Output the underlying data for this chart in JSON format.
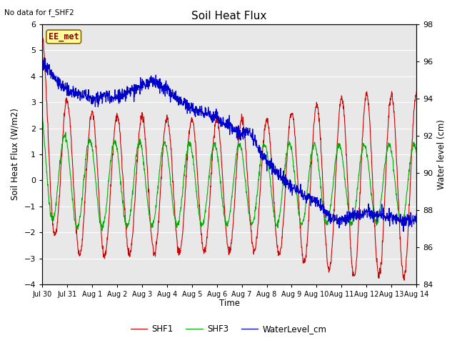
{
  "title": "Soil Heat Flux",
  "ylabel_left": "Soil Heat Flux (W/m2)",
  "ylabel_right": "Water level (cm)",
  "xlabel": "Time",
  "no_data_text": "No data for f_SHF2",
  "annotation_text": "EE_met",
  "ylim_left": [
    -4.0,
    6.0
  ],
  "ylim_right": [
    84,
    98
  ],
  "yticks_left": [
    -4.0,
    -3.0,
    -2.0,
    -1.0,
    0.0,
    1.0,
    2.0,
    3.0,
    4.0,
    5.0,
    6.0
  ],
  "yticks_right": [
    84,
    86,
    88,
    90,
    92,
    94,
    96,
    98
  ],
  "bg_color": "#e8e8e8",
  "grid_color": "#ffffff",
  "shf1_color": "#cc0000",
  "shf3_color": "#00aa00",
  "water_color": "#0000cc",
  "legend_labels": [
    "SHF1",
    "SHF3",
    "WaterLevel_cm"
  ],
  "xtick_labels": [
    "Jul 30",
    "Jul 31",
    "Aug 1",
    "Aug 2",
    "Aug 3",
    "Aug 4",
    "Aug 5",
    "Aug 6",
    "Aug 7",
    "Aug 8",
    "Aug 9",
    "Aug 10",
    "Aug 11",
    "Aug 12",
    "Aug 13",
    "Aug 14"
  ],
  "figsize": [
    6.4,
    4.8
  ],
  "dpi": 100
}
